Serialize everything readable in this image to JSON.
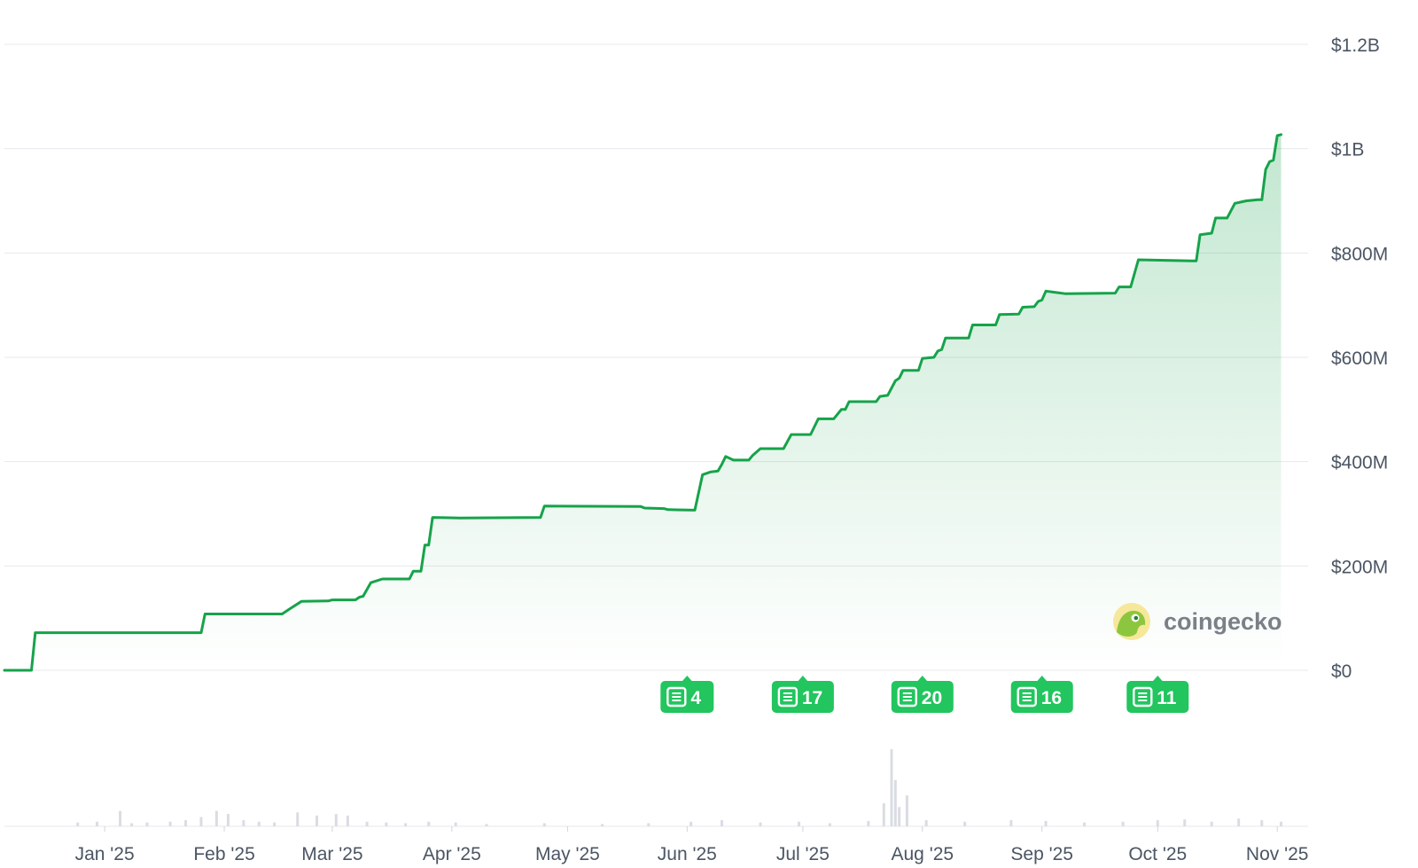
{
  "brand": {
    "name": "coingecko",
    "logo_icon": "gecko-icon"
  },
  "colors": {
    "line": "#16a34a",
    "badge": "#22c55e",
    "volume": "#d9dde3",
    "grid": "#e6e8eb"
  },
  "chart_data": {
    "type": "area",
    "title": "",
    "xlabel": "",
    "ylabel": "",
    "grid": true,
    "y_axis_position": "right",
    "ylim": [
      0,
      1200000000
    ],
    "yticks": [
      {
        "value": 1200000000,
        "label": "$1.2B"
      },
      {
        "value": 1000000000,
        "label": "$1B"
      },
      {
        "value": 800000000,
        "label": "$800M"
      },
      {
        "value": 600000000,
        "label": "$600M"
      },
      {
        "value": 400000000,
        "label": "$400M"
      },
      {
        "value": 200000000,
        "label": "$200M"
      },
      {
        "value": 0,
        "label": "$0"
      }
    ],
    "xlim": [
      "2024-12-06",
      "2025-11-09"
    ],
    "xticks": [
      {
        "date": "2025-01-01",
        "label": "Jan '25"
      },
      {
        "date": "2025-02-01",
        "label": "Feb '25"
      },
      {
        "date": "2025-03-01",
        "label": "Mar '25"
      },
      {
        "date": "2025-04-01",
        "label": "Apr '25"
      },
      {
        "date": "2025-05-01",
        "label": "May '25"
      },
      {
        "date": "2025-06-01",
        "label": "Jun '25"
      },
      {
        "date": "2025-07-01",
        "label": "Jul '25"
      },
      {
        "date": "2025-08-01",
        "label": "Aug '25"
      },
      {
        "date": "2025-09-01",
        "label": "Sep '25"
      },
      {
        "date": "2025-10-01",
        "label": "Oct '25"
      },
      {
        "date": "2025-11-01",
        "label": "Nov '25"
      }
    ],
    "series": [
      {
        "points": [
          [
            "2024-12-06",
            0
          ],
          [
            "2024-12-13",
            0
          ],
          [
            "2024-12-14",
            72000000
          ],
          [
            "2025-01-26",
            72000000
          ],
          [
            "2025-01-27",
            108000000
          ],
          [
            "2025-02-16",
            108000000
          ],
          [
            "2025-02-18",
            118000000
          ],
          [
            "2025-02-21",
            132000000
          ],
          [
            "2025-02-28",
            133000000
          ],
          [
            "2025-03-01",
            135000000
          ],
          [
            "2025-03-07",
            135000000
          ],
          [
            "2025-03-08",
            140000000
          ],
          [
            "2025-03-09",
            142000000
          ],
          [
            "2025-03-11",
            168000000
          ],
          [
            "2025-03-14",
            175000000
          ],
          [
            "2025-03-21",
            175000000
          ],
          [
            "2025-03-22",
            190000000
          ],
          [
            "2025-03-24",
            190000000
          ],
          [
            "2025-03-25",
            240000000
          ],
          [
            "2025-03-26",
            240000000
          ],
          [
            "2025-03-27",
            293000000
          ],
          [
            "2025-04-03",
            292000000
          ],
          [
            "2025-04-24",
            293000000
          ],
          [
            "2025-04-25",
            315000000
          ],
          [
            "2025-05-20",
            314000000
          ],
          [
            "2025-05-21",
            311000000
          ],
          [
            "2025-05-26",
            310000000
          ],
          [
            "2025-05-27",
            308000000
          ],
          [
            "2025-06-03",
            307000000
          ],
          [
            "2025-06-05",
            375000000
          ],
          [
            "2025-06-07",
            380000000
          ],
          [
            "2025-06-09",
            382000000
          ],
          [
            "2025-06-10",
            395000000
          ],
          [
            "2025-06-11",
            410000000
          ],
          [
            "2025-06-13",
            403000000
          ],
          [
            "2025-06-17",
            403000000
          ],
          [
            "2025-06-18",
            412000000
          ],
          [
            "2025-06-20",
            425000000
          ],
          [
            "2025-06-26",
            425000000
          ],
          [
            "2025-06-28",
            452000000
          ],
          [
            "2025-07-03",
            452000000
          ],
          [
            "2025-07-05",
            482000000
          ],
          [
            "2025-07-09",
            482000000
          ],
          [
            "2025-07-11",
            500000000
          ],
          [
            "2025-07-12",
            500000000
          ],
          [
            "2025-07-13",
            515000000
          ],
          [
            "2025-07-20",
            515000000
          ],
          [
            "2025-07-21",
            525000000
          ],
          [
            "2025-07-23",
            527000000
          ],
          [
            "2025-07-25",
            555000000
          ],
          [
            "2025-07-26",
            560000000
          ],
          [
            "2025-07-27",
            575000000
          ],
          [
            "2025-07-31",
            575000000
          ],
          [
            "2025-08-01",
            598000000
          ],
          [
            "2025-08-04",
            600000000
          ],
          [
            "2025-08-05",
            612000000
          ],
          [
            "2025-08-06",
            615000000
          ],
          [
            "2025-08-07",
            637000000
          ],
          [
            "2025-08-13",
            637000000
          ],
          [
            "2025-08-14",
            662000000
          ],
          [
            "2025-08-20",
            662000000
          ],
          [
            "2025-08-21",
            682000000
          ],
          [
            "2025-08-26",
            683000000
          ],
          [
            "2025-08-27",
            696000000
          ],
          [
            "2025-08-30",
            697000000
          ],
          [
            "2025-08-31",
            707000000
          ],
          [
            "2025-09-01",
            710000000
          ],
          [
            "2025-09-02",
            727000000
          ],
          [
            "2025-09-04",
            725000000
          ],
          [
            "2025-09-07",
            722000000
          ],
          [
            "2025-09-20",
            723000000
          ],
          [
            "2025-09-21",
            735000000
          ],
          [
            "2025-09-24",
            735000000
          ],
          [
            "2025-09-26",
            787000000
          ],
          [
            "2025-10-10",
            785000000
          ],
          [
            "2025-10-11",
            785000000
          ],
          [
            "2025-10-12",
            835000000
          ],
          [
            "2025-10-15",
            838000000
          ],
          [
            "2025-10-16",
            867000000
          ],
          [
            "2025-10-19",
            867000000
          ],
          [
            "2025-10-21",
            895000000
          ],
          [
            "2025-10-24",
            900000000
          ],
          [
            "2025-10-27",
            902000000
          ],
          [
            "2025-10-28",
            902000000
          ],
          [
            "2025-10-29",
            960000000
          ],
          [
            "2025-10-30",
            975000000
          ],
          [
            "2025-10-31",
            978000000
          ],
          [
            "2025-11-01",
            1025000000
          ],
          [
            "2025-11-02",
            1027000000
          ]
        ]
      }
    ],
    "volume": {
      "ymax": 100,
      "points": [
        [
          "2024-12-25",
          5
        ],
        [
          "2024-12-30",
          6
        ],
        [
          "2025-01-05",
          20
        ],
        [
          "2025-01-08",
          4
        ],
        [
          "2025-01-12",
          5
        ],
        [
          "2025-01-18",
          6
        ],
        [
          "2025-01-22",
          8
        ],
        [
          "2025-01-26",
          12
        ],
        [
          "2025-01-30",
          20
        ],
        [
          "2025-02-02",
          16
        ],
        [
          "2025-02-06",
          8
        ],
        [
          "2025-02-10",
          6
        ],
        [
          "2025-02-14",
          5
        ],
        [
          "2025-02-20",
          18
        ],
        [
          "2025-02-25",
          14
        ],
        [
          "2025-03-02",
          16
        ],
        [
          "2025-03-05",
          14
        ],
        [
          "2025-03-10",
          6
        ],
        [
          "2025-03-15",
          5
        ],
        [
          "2025-03-20",
          4
        ],
        [
          "2025-03-26",
          6
        ],
        [
          "2025-04-02",
          5
        ],
        [
          "2025-04-10",
          3
        ],
        [
          "2025-04-25",
          4
        ],
        [
          "2025-05-10",
          3
        ],
        [
          "2025-05-22",
          4
        ],
        [
          "2025-06-02",
          6
        ],
        [
          "2025-06-10",
          8
        ],
        [
          "2025-06-20",
          5
        ],
        [
          "2025-06-30",
          6
        ],
        [
          "2025-07-08",
          4
        ],
        [
          "2025-07-18",
          7
        ],
        [
          "2025-07-22",
          30
        ],
        [
          "2025-07-24",
          100
        ],
        [
          "2025-07-25",
          60
        ],
        [
          "2025-07-26",
          25
        ],
        [
          "2025-07-28",
          40
        ],
        [
          "2025-08-02",
          8
        ],
        [
          "2025-08-12",
          6
        ],
        [
          "2025-08-24",
          8
        ],
        [
          "2025-09-02",
          7
        ],
        [
          "2025-09-12",
          5
        ],
        [
          "2025-09-22",
          6
        ],
        [
          "2025-10-01",
          8
        ],
        [
          "2025-10-08",
          9
        ],
        [
          "2025-10-15",
          6
        ],
        [
          "2025-10-22",
          10
        ],
        [
          "2025-10-28",
          8
        ],
        [
          "2025-11-02",
          6
        ]
      ]
    },
    "annotations": [
      {
        "date": "2025-06-01",
        "label": "4",
        "icon": "news-icon"
      },
      {
        "date": "2025-07-01",
        "label": "17",
        "icon": "news-icon"
      },
      {
        "date": "2025-08-01",
        "label": "20",
        "icon": "news-icon"
      },
      {
        "date": "2025-09-01",
        "label": "16",
        "icon": "news-icon"
      },
      {
        "date": "2025-10-01",
        "label": "11",
        "icon": "news-icon"
      }
    ]
  }
}
